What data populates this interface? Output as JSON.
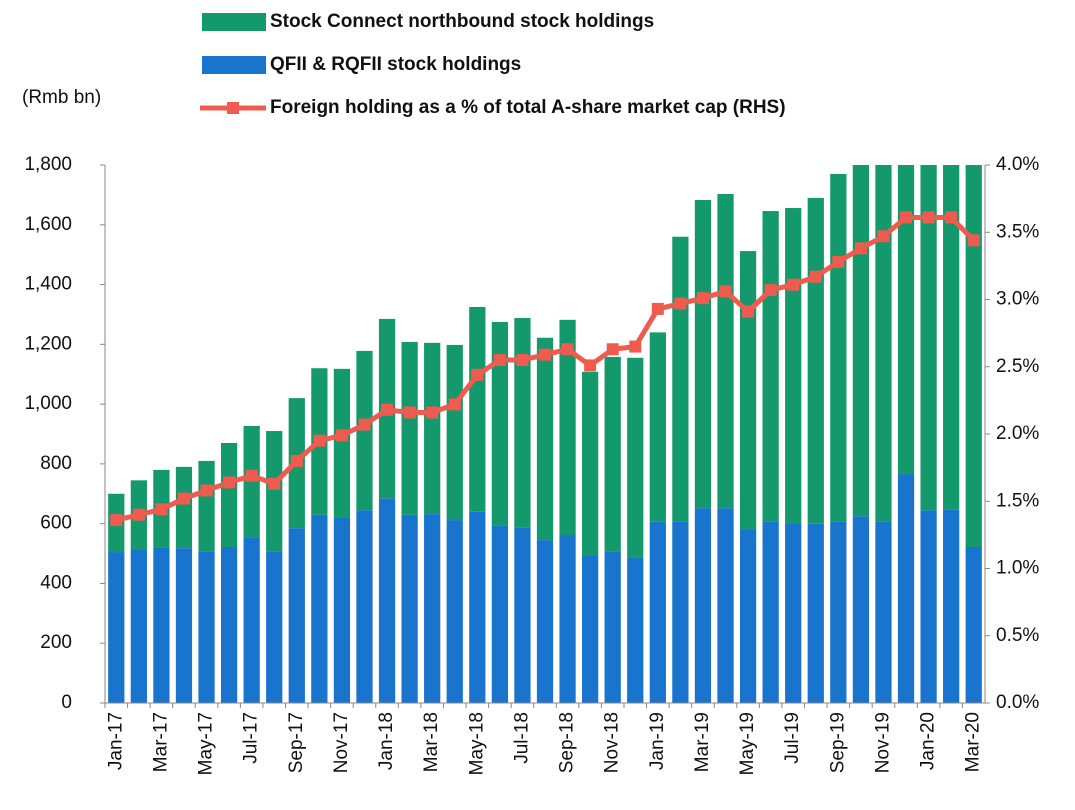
{
  "chart_data": {
    "type": "bar",
    "ylabel": "(Rmb bn)",
    "categories": [
      "Jan-17",
      null,
      "Mar-17",
      null,
      "May-17",
      null,
      "Jul-17",
      null,
      "Sep-17",
      null,
      "Nov-17",
      null,
      "Jan-18",
      null,
      "Mar-18",
      null,
      "May-18",
      null,
      "Jul-18",
      null,
      "Sep-18",
      null,
      "Nov-18",
      null,
      "Jan-19",
      null,
      "Mar-19",
      null,
      "May-19",
      null,
      "Jul-19",
      null,
      "Sep-19",
      null,
      "Nov-19",
      null,
      "Jan-20",
      null,
      "Mar-20"
    ],
    "series": [
      {
        "name": "Stock Connect northbound stock holdings",
        "color": "#14996c",
        "values": [
          195,
          230,
          260,
          272,
          302,
          348,
          372,
          402,
          435,
          490,
          496,
          533,
          600,
          578,
          573,
          586,
          685,
          680,
          700,
          677,
          720,
          613,
          650,
          667,
          632,
          952,
          1031,
          1051,
          930,
          1038,
          1054,
          1090,
          1162,
          1225,
          1262,
          1184,
          1235,
          1232,
          1308
        ]
      },
      {
        "name": "QFII & RQFII stock holdings",
        "color": "#1874cd",
        "values": [
          505,
          515,
          520,
          518,
          508,
          522,
          555,
          508,
          585,
          630,
          622,
          645,
          685,
          630,
          632,
          612,
          640,
          595,
          588,
          545,
          562,
          495,
          508,
          488,
          608,
          608,
          652,
          652,
          582,
          608,
          602,
          600,
          608,
          625,
          608,
          766,
          645,
          648,
          522
        ]
      },
      {
        "name": "Foreign holding as a % of total A-share market cap  (RHS)",
        "color": "#ef5b4f",
        "type": "line",
        "axis": "y2",
        "values": [
          1.36,
          1.4,
          1.44,
          1.52,
          1.58,
          1.64,
          1.69,
          1.63,
          1.8,
          1.95,
          1.99,
          2.07,
          2.18,
          2.16,
          2.16,
          2.22,
          2.44,
          2.55,
          2.55,
          2.59,
          2.63,
          2.51,
          2.63,
          2.65,
          2.93,
          2.97,
          3.01,
          3.06,
          2.91,
          3.07,
          3.11,
          3.17,
          3.28,
          3.38,
          3.47,
          3.61,
          3.61,
          3.61,
          3.44
        ]
      }
    ],
    "ylim": [
      0,
      1800
    ],
    "yticks": [
      0,
      200,
      400,
      600,
      800,
      {
        "value": 1000,
        "label": "1,000"
      },
      {
        "value": 1200,
        "label": "1,200"
      },
      {
        "value": 1400,
        "label": "1,400"
      },
      {
        "value": 1600,
        "label": "1,600"
      },
      {
        "value": 1800,
        "label": "1,800"
      }
    ],
    "y2lim": [
      0,
      4
    ],
    "y2ticks": [
      {
        "value": 0,
        "label": "0.0%"
      },
      {
        "value": 0.5,
        "label": "0.5%"
      },
      {
        "value": 1,
        "label": "1.0%"
      },
      {
        "value": 1.5,
        "label": "1.5%"
      },
      {
        "value": 2,
        "label": "2.0%"
      },
      {
        "value": 2.5,
        "label": "2.5%"
      },
      {
        "value": 3,
        "label": "3.0%"
      },
      {
        "value": 3.5,
        "label": "3.5%"
      },
      {
        "value": 4,
        "label": "4.0%"
      }
    ],
    "grid": false
  }
}
